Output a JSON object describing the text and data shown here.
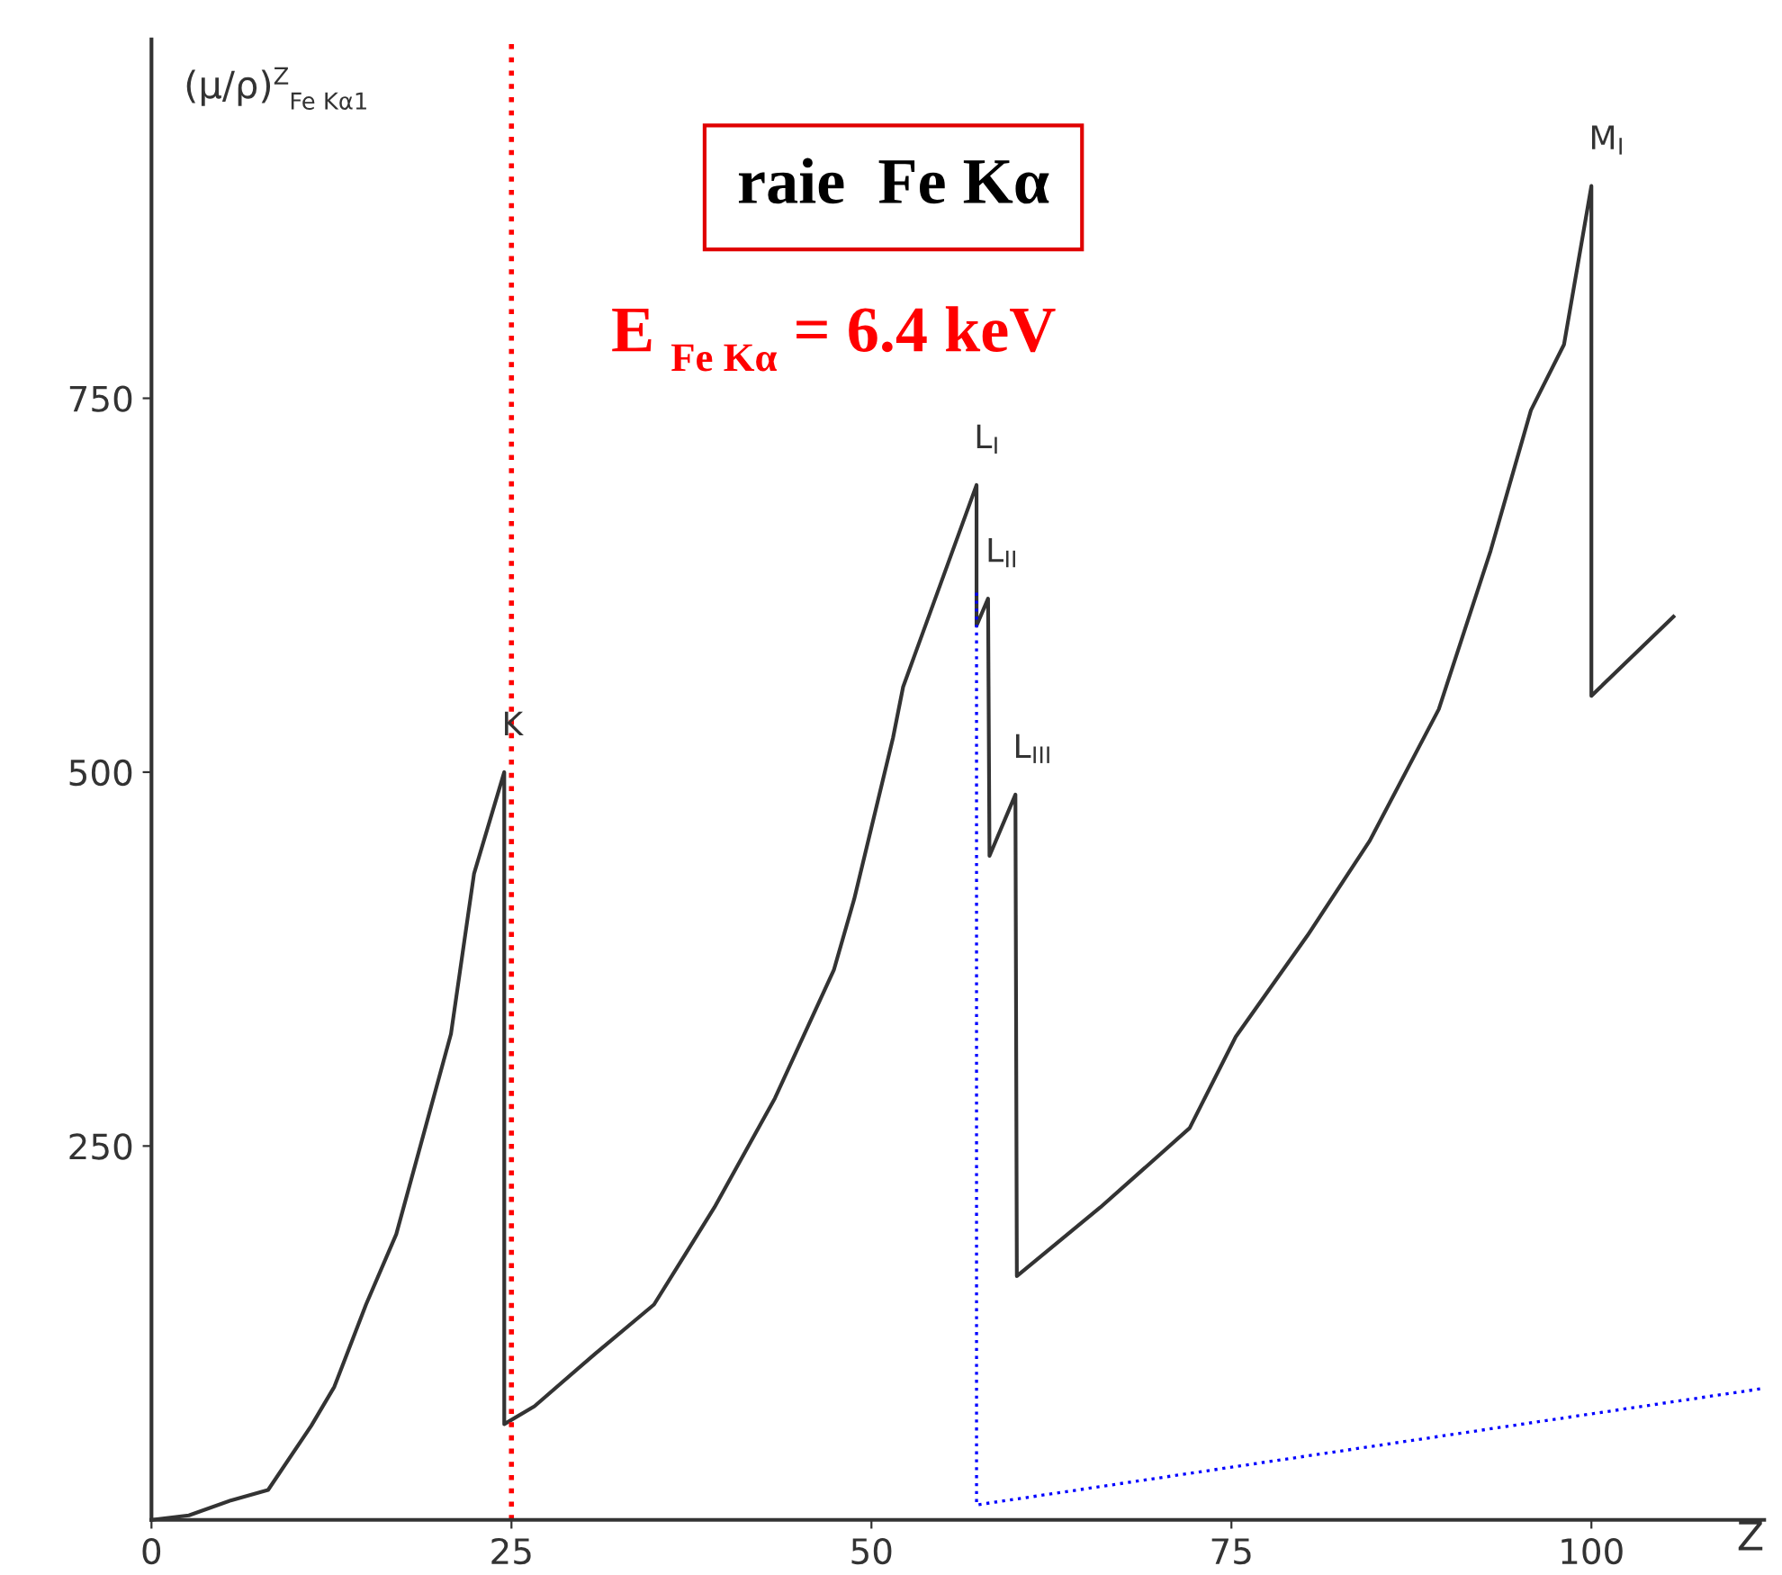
{
  "chart_data": {
    "type": "line",
    "title": "raie  Fe Kα",
    "subtitle": "E $_{Fe Kα}$ = 6.4 keV",
    "xlabel": "Z",
    "ylabel": "(μ/ρ)$^{Z}$$_{Fe Kα1}$",
    "series": [
      {
        "color": "#333333",
        "x": [
          0,
          2.6,
          5.5,
          8.1,
          11.1,
          12.7,
          14.9,
          17.0,
          19.1,
          20.8,
          22.4,
          24.5,
          24.5,
          26.6,
          30.8,
          34.9,
          39.1,
          43.3,
          47.4,
          48.8,
          51.5,
          52.2,
          57.3,
          57.3,
          58.1,
          58.2,
          60.0,
          60.1,
          65.9,
          72.1,
          75.3,
          80.3,
          84.6,
          89.4,
          93.0,
          95.8,
          98.1,
          100,
          100,
          105.7
        ],
        "values": [
          0,
          3,
          13,
          20,
          63,
          89,
          144,
          191,
          265,
          325,
          432,
          500,
          64,
          76,
          111,
          144,
          209,
          282,
          368,
          415,
          523,
          557,
          692,
          598,
          616,
          444,
          485,
          163,
          209,
          262,
          323,
          391,
          454,
          542,
          648,
          742,
          786,
          892,
          551,
          604
        ]
      },
      {
        "color": "#0000ff",
        "line_style": "dotted",
        "x": [
          57.3,
          57.3,
          112
        ],
        "values": [
          620,
          10,
          88
        ]
      }
    ],
    "ref_lines": [
      {
        "axis": "x",
        "value": 25,
        "color": "#ff0000",
        "line_style": "dotted"
      }
    ],
    "annotations": [
      {
        "text": "K",
        "x": 24.5,
        "y": 500
      },
      {
        "text": "L$_{I}$",
        "x": 57.3,
        "y": 692
      },
      {
        "text": "L$_{II}$",
        "x": 58.1,
        "y": 616
      },
      {
        "text": "L$_{III}$",
        "x": 60.0,
        "y": 485
      },
      {
        "text": "M$_{I}$",
        "x": 100,
        "y": 892
      }
    ],
    "xlim": [
      0,
      112
    ],
    "ylim": [
      0,
      990
    ],
    "xticks": [
      0,
      25,
      50,
      75,
      100
    ],
    "yticks": [
      250,
      500,
      750
    ],
    "grid": false,
    "legend": false
  }
}
